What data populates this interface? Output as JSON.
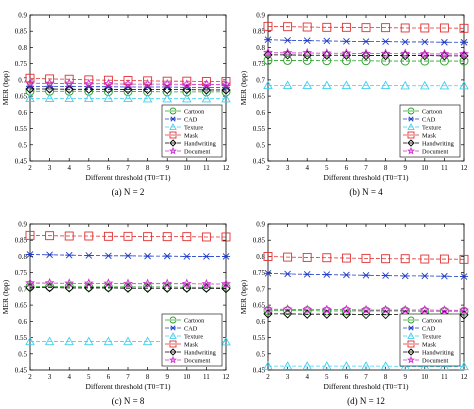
{
  "chart_data": [
    {
      "type": "line",
      "caption": "(a) N = 2",
      "xlabel": "Different threshold (T0=T1)",
      "ylabel": "MER (bpp)",
      "x": [
        2,
        3,
        4,
        5,
        6,
        7,
        8,
        9,
        10,
        11,
        12
      ],
      "xlim": [
        2,
        12
      ],
      "ylim": [
        0.45,
        0.9
      ],
      "yticks": [
        0.45,
        0.5,
        0.55,
        0.6,
        0.65,
        0.7,
        0.75,
        0.8,
        0.85,
        0.9
      ],
      "grid": false,
      "legend_position": "lower-right",
      "series": [
        {
          "name": "Cartoon",
          "values": [
            0.665,
            0.665,
            0.665,
            0.665,
            0.664,
            0.664,
            0.664,
            0.663,
            0.663,
            0.663,
            0.663
          ]
        },
        {
          "name": "CAD",
          "values": [
            0.68,
            0.68,
            0.68,
            0.679,
            0.679,
            0.678,
            0.678,
            0.678,
            0.677,
            0.677,
            0.677
          ]
        },
        {
          "name": "Texture",
          "values": [
            0.643,
            0.643,
            0.643,
            0.643,
            0.643,
            0.643,
            0.642,
            0.642,
            0.642,
            0.642,
            0.642
          ]
        },
        {
          "name": "Mask",
          "values": [
            0.705,
            0.703,
            0.702,
            0.7,
            0.699,
            0.698,
            0.697,
            0.696,
            0.696,
            0.695,
            0.695
          ]
        },
        {
          "name": "Handwriting",
          "values": [
            0.672,
            0.672,
            0.671,
            0.671,
            0.671,
            0.67,
            0.67,
            0.67,
            0.67,
            0.669,
            0.669
          ]
        },
        {
          "name": "Document",
          "values": [
            0.69,
            0.689,
            0.689,
            0.688,
            0.688,
            0.687,
            0.687,
            0.687,
            0.686,
            0.686,
            0.686
          ]
        }
      ]
    },
    {
      "type": "line",
      "caption": "(b) N = 4",
      "xlabel": "Different threshold (T0=T1)",
      "ylabel": "MER (bpp)",
      "x": [
        2,
        3,
        4,
        5,
        6,
        7,
        8,
        9,
        10,
        11,
        12
      ],
      "xlim": [
        2,
        12
      ],
      "ylim": [
        0.45,
        0.9
      ],
      "yticks": [
        0.45,
        0.5,
        0.55,
        0.6,
        0.65,
        0.7,
        0.75,
        0.8,
        0.85,
        0.9
      ],
      "grid": false,
      "legend_position": "lower-right",
      "series": [
        {
          "name": "Cartoon",
          "values": [
            0.76,
            0.76,
            0.76,
            0.759,
            0.759,
            0.759,
            0.758,
            0.758,
            0.758,
            0.758,
            0.758
          ]
        },
        {
          "name": "CAD",
          "values": [
            0.824,
            0.822,
            0.821,
            0.82,
            0.819,
            0.818,
            0.818,
            0.817,
            0.817,
            0.816,
            0.816
          ]
        },
        {
          "name": "Texture",
          "values": [
            0.683,
            0.683,
            0.683,
            0.683,
            0.683,
            0.683,
            0.683,
            0.682,
            0.682,
            0.682,
            0.682
          ]
        },
        {
          "name": "Mask",
          "values": [
            0.865,
            0.864,
            0.863,
            0.862,
            0.862,
            0.861,
            0.861,
            0.86,
            0.86,
            0.86,
            0.859
          ]
        },
        {
          "name": "Handwriting",
          "values": [
            0.777,
            0.777,
            0.776,
            0.776,
            0.776,
            0.775,
            0.775,
            0.775,
            0.775,
            0.774,
            0.774
          ]
        },
        {
          "name": "Document",
          "values": [
            0.784,
            0.783,
            0.783,
            0.782,
            0.782,
            0.781,
            0.781,
            0.781,
            0.78,
            0.78,
            0.78
          ]
        }
      ]
    },
    {
      "type": "line",
      "caption": "(c) N = 8",
      "xlabel": "Different threshold (T0=T1)",
      "ylabel": "MER (bpp)",
      "x": [
        2,
        3,
        4,
        5,
        6,
        7,
        8,
        9,
        10,
        11,
        12
      ],
      "xlim": [
        2,
        12
      ],
      "ylim": [
        0.45,
        0.9
      ],
      "yticks": [
        0.45,
        0.5,
        0.55,
        0.6,
        0.65,
        0.7,
        0.75,
        0.8,
        0.85,
        0.9
      ],
      "grid": false,
      "legend_position": "lower-right",
      "series": [
        {
          "name": "Cartoon",
          "values": [
            0.707,
            0.707,
            0.707,
            0.706,
            0.706,
            0.706,
            0.706,
            0.706,
            0.705,
            0.705,
            0.705
          ]
        },
        {
          "name": "CAD",
          "values": [
            0.806,
            0.805,
            0.804,
            0.803,
            0.802,
            0.802,
            0.801,
            0.801,
            0.8,
            0.8,
            0.8
          ]
        },
        {
          "name": "Texture",
          "values": [
            0.538,
            0.538,
            0.538,
            0.538,
            0.538,
            0.538,
            0.538,
            0.537,
            0.537,
            0.537,
            0.537
          ]
        },
        {
          "name": "Mask",
          "values": [
            0.865,
            0.864,
            0.863,
            0.863,
            0.862,
            0.862,
            0.861,
            0.861,
            0.861,
            0.86,
            0.86
          ]
        },
        {
          "name": "Handwriting",
          "values": [
            0.704,
            0.704,
            0.703,
            0.703,
            0.703,
            0.702,
            0.702,
            0.702,
            0.702,
            0.702,
            0.701
          ]
        },
        {
          "name": "Document",
          "values": [
            0.718,
            0.718,
            0.717,
            0.717,
            0.717,
            0.716,
            0.716,
            0.716,
            0.716,
            0.715,
            0.715
          ]
        }
      ]
    },
    {
      "type": "line",
      "caption": "(d) N = 12",
      "xlabel": "Different threshold (T0=T1)",
      "ylabel": "MER (bpp)",
      "x": [
        2,
        3,
        4,
        5,
        6,
        7,
        8,
        9,
        10,
        11,
        12
      ],
      "xlim": [
        2,
        12
      ],
      "ylim": [
        0.45,
        0.9
      ],
      "yticks": [
        0.45,
        0.5,
        0.55,
        0.6,
        0.65,
        0.7,
        0.75,
        0.8,
        0.85,
        0.9
      ],
      "grid": false,
      "legend_position": "lower-right",
      "series": [
        {
          "name": "Cartoon",
          "values": [
            0.633,
            0.633,
            0.633,
            0.632,
            0.632,
            0.632,
            0.632,
            0.632,
            0.631,
            0.631,
            0.631
          ]
        },
        {
          "name": "CAD",
          "values": [
            0.748,
            0.746,
            0.745,
            0.744,
            0.743,
            0.742,
            0.741,
            0.74,
            0.74,
            0.739,
            0.738
          ]
        },
        {
          "name": "Texture",
          "values": [
            0.462,
            0.462,
            0.462,
            0.462,
            0.462,
            0.462,
            0.462,
            0.461,
            0.461,
            0.461,
            0.461
          ]
        },
        {
          "name": "Mask",
          "values": [
            0.8,
            0.798,
            0.797,
            0.796,
            0.795,
            0.794,
            0.793,
            0.793,
            0.792,
            0.792,
            0.791
          ]
        },
        {
          "name": "Handwriting",
          "values": [
            0.623,
            0.623,
            0.622,
            0.622,
            0.622,
            0.621,
            0.621,
            0.621,
            0.621,
            0.62,
            0.62
          ]
        },
        {
          "name": "Document",
          "values": [
            0.637,
            0.637,
            0.636,
            0.636,
            0.636,
            0.635,
            0.635,
            0.635,
            0.635,
            0.634,
            0.634
          ]
        }
      ]
    }
  ],
  "series_styles": [
    {
      "name": "Cartoon",
      "color": "#2ca02c",
      "marker": "circle",
      "dash": "4 2"
    },
    {
      "name": "CAD",
      "color": "#1f3cc8",
      "marker": "asterisk",
      "dash": "4 2"
    },
    {
      "name": "Texture",
      "color": "#40d0f0",
      "marker": "triangle",
      "dash": "4 2"
    },
    {
      "name": "Mask",
      "color": "#e03030",
      "marker": "square",
      "dash": "4 2"
    },
    {
      "name": "Handwriting",
      "color": "#000000",
      "marker": "diamond",
      "dash": "4 2"
    },
    {
      "name": "Document",
      "color": "#d030d0",
      "marker": "star",
      "dash": "4 2"
    }
  ]
}
